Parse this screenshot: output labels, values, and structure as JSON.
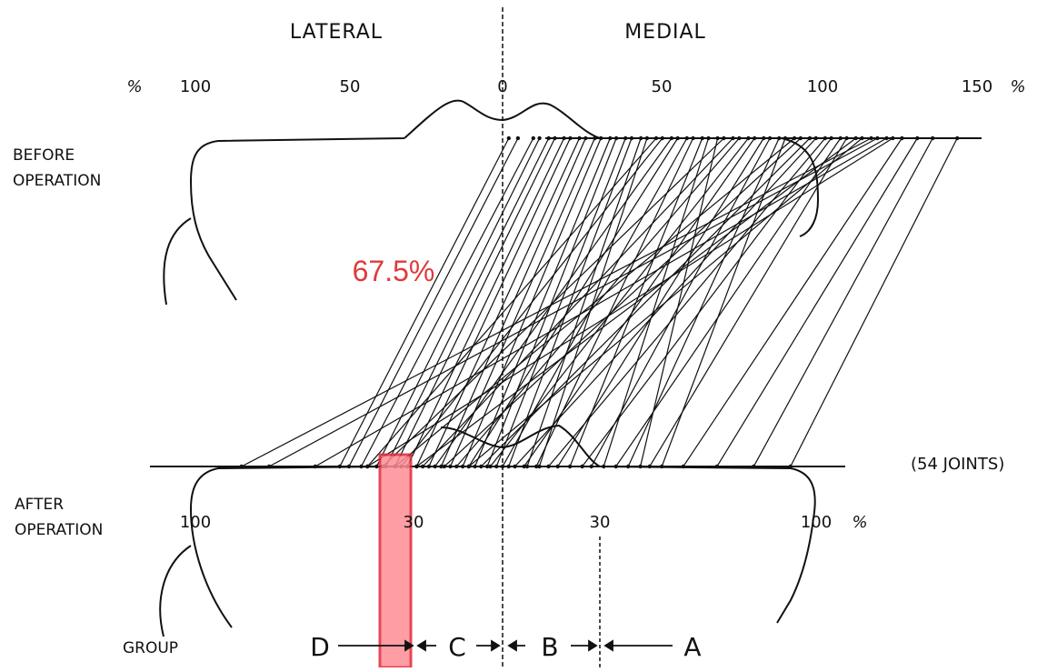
{
  "headers": {
    "lateral": "LATERAL",
    "medial": "MEDIAL"
  },
  "top_scale": {
    "unit_left": "%",
    "ticks": [
      "100",
      "50",
      "0",
      "50",
      "100",
      "150"
    ],
    "unit_right": "%"
  },
  "row_labels": {
    "before_line1": "BEFORE",
    "before_line2": "OPERATION",
    "after_line1": "AFTER",
    "after_line2": "OPERATION",
    "group": "GROUP"
  },
  "joints_note": "(54 JOINTS)",
  "bottom_scale": {
    "left_100": "100",
    "left_30": "30",
    "right_30": "30",
    "right_100": "100",
    "unit": "%"
  },
  "groups": [
    "D",
    "C",
    "B",
    "A"
  ],
  "highlight": {
    "value_text": "67.5%",
    "color": "#e03a3a",
    "fill": "#ff8c96"
  },
  "colors": {
    "ink": "#111111",
    "background": "#ffffff"
  },
  "chart_data": {
    "type": "line",
    "x_axis_before": {
      "unit": "%",
      "left_label": "LATERAL",
      "right_label": "MEDIAL",
      "range": [
        -100,
        150
      ]
    },
    "x_axis_after": {
      "unit": "%",
      "range": [
        -100,
        100
      ]
    },
    "n_joints": 54,
    "group_boundaries_after": {
      "D_C": -30,
      "C_B": 0,
      "B_A": 30
    },
    "annotation": "67.5%",
    "highlighted_group_boundary": -30,
    "joints": [
      [
        2,
        -53
      ],
      [
        5,
        -50
      ],
      [
        10,
        -46
      ],
      [
        12,
        -41
      ],
      [
        15,
        -38
      ],
      [
        17,
        -35
      ],
      [
        20,
        -31
      ],
      [
        22,
        -28
      ],
      [
        25,
        -24
      ],
      [
        27,
        -20
      ],
      [
        30,
        -17
      ],
      [
        32,
        -13
      ],
      [
        35,
        -9
      ],
      [
        37,
        -5
      ],
      [
        40,
        -2
      ],
      [
        42,
        2
      ],
      [
        45,
        8
      ],
      [
        47,
        12
      ],
      [
        50,
        -44
      ],
      [
        52,
        -33
      ],
      [
        55,
        -22
      ],
      [
        57,
        -11
      ],
      [
        60,
        0
      ],
      [
        62,
        11
      ],
      [
        65,
        22
      ],
      [
        67,
        33
      ],
      [
        70,
        45
      ],
      [
        72,
        -39
      ],
      [
        75,
        -26
      ],
      [
        77,
        -15
      ],
      [
        80,
        -4
      ],
      [
        82,
        7
      ],
      [
        85,
        18
      ],
      [
        87,
        29
      ],
      [
        90,
        41
      ],
      [
        92,
        52
      ],
      [
        95,
        -35
      ],
      [
        97,
        -19
      ],
      [
        100,
        -7
      ],
      [
        102,
        4
      ],
      [
        105,
        15
      ],
      [
        107,
        26
      ],
      [
        110,
        37
      ],
      [
        112,
        48
      ],
      [
        115,
        -28
      ],
      [
        117,
        -11
      ],
      [
        120,
        -85
      ],
      [
        122,
        -76
      ],
      [
        125,
        -61
      ],
      [
        127,
        -44
      ],
      [
        130,
        59
      ],
      [
        135,
        70
      ],
      [
        140,
        82
      ],
      [
        148,
        94
      ]
    ]
  }
}
